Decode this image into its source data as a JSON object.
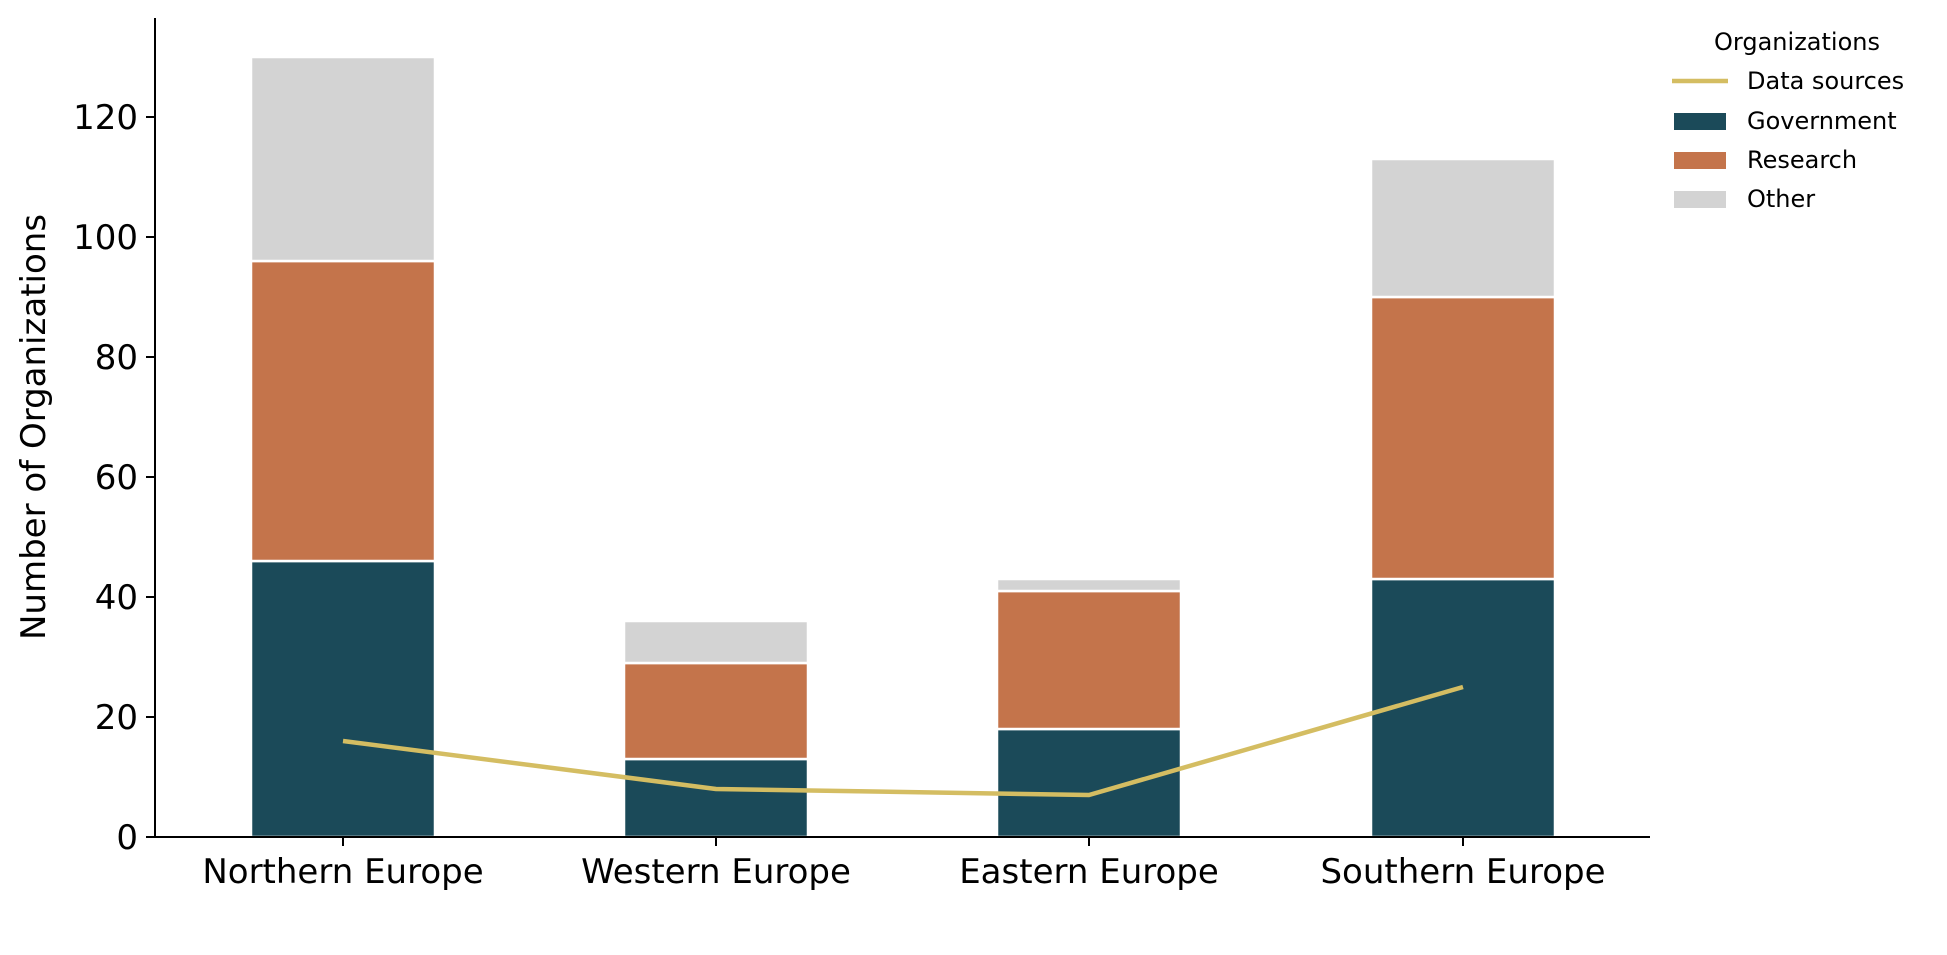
{
  "chart_data": {
    "type": "bar",
    "stacked": true,
    "categories": [
      "Northern Europe",
      "Western Europe",
      "Eastern Europe",
      "Southern Europe"
    ],
    "series": [
      {
        "name": "Government",
        "type": "bar",
        "color": "#1b4a59",
        "values": [
          46,
          13,
          18,
          43
        ]
      },
      {
        "name": "Research",
        "type": "bar",
        "color": "#c4744b",
        "values": [
          50,
          16,
          23,
          47
        ]
      },
      {
        "name": "Other",
        "type": "bar",
        "color": "#d3d3d3",
        "values": [
          34,
          7,
          2,
          23
        ]
      },
      {
        "name": "Data sources",
        "type": "line",
        "color": "#d4bd62",
        "values": [
          16,
          8,
          7,
          25
        ]
      }
    ],
    "ylabel": "Number of Organizations",
    "xlabel": "",
    "ylim": [
      0,
      136
    ],
    "yticks": [
      0,
      20,
      40,
      60,
      80,
      100,
      120
    ],
    "grid": false,
    "legend": {
      "title": "Organizations",
      "placement": "top-right",
      "entries": [
        "Data sources",
        "Government",
        "Research",
        "Other"
      ]
    }
  }
}
